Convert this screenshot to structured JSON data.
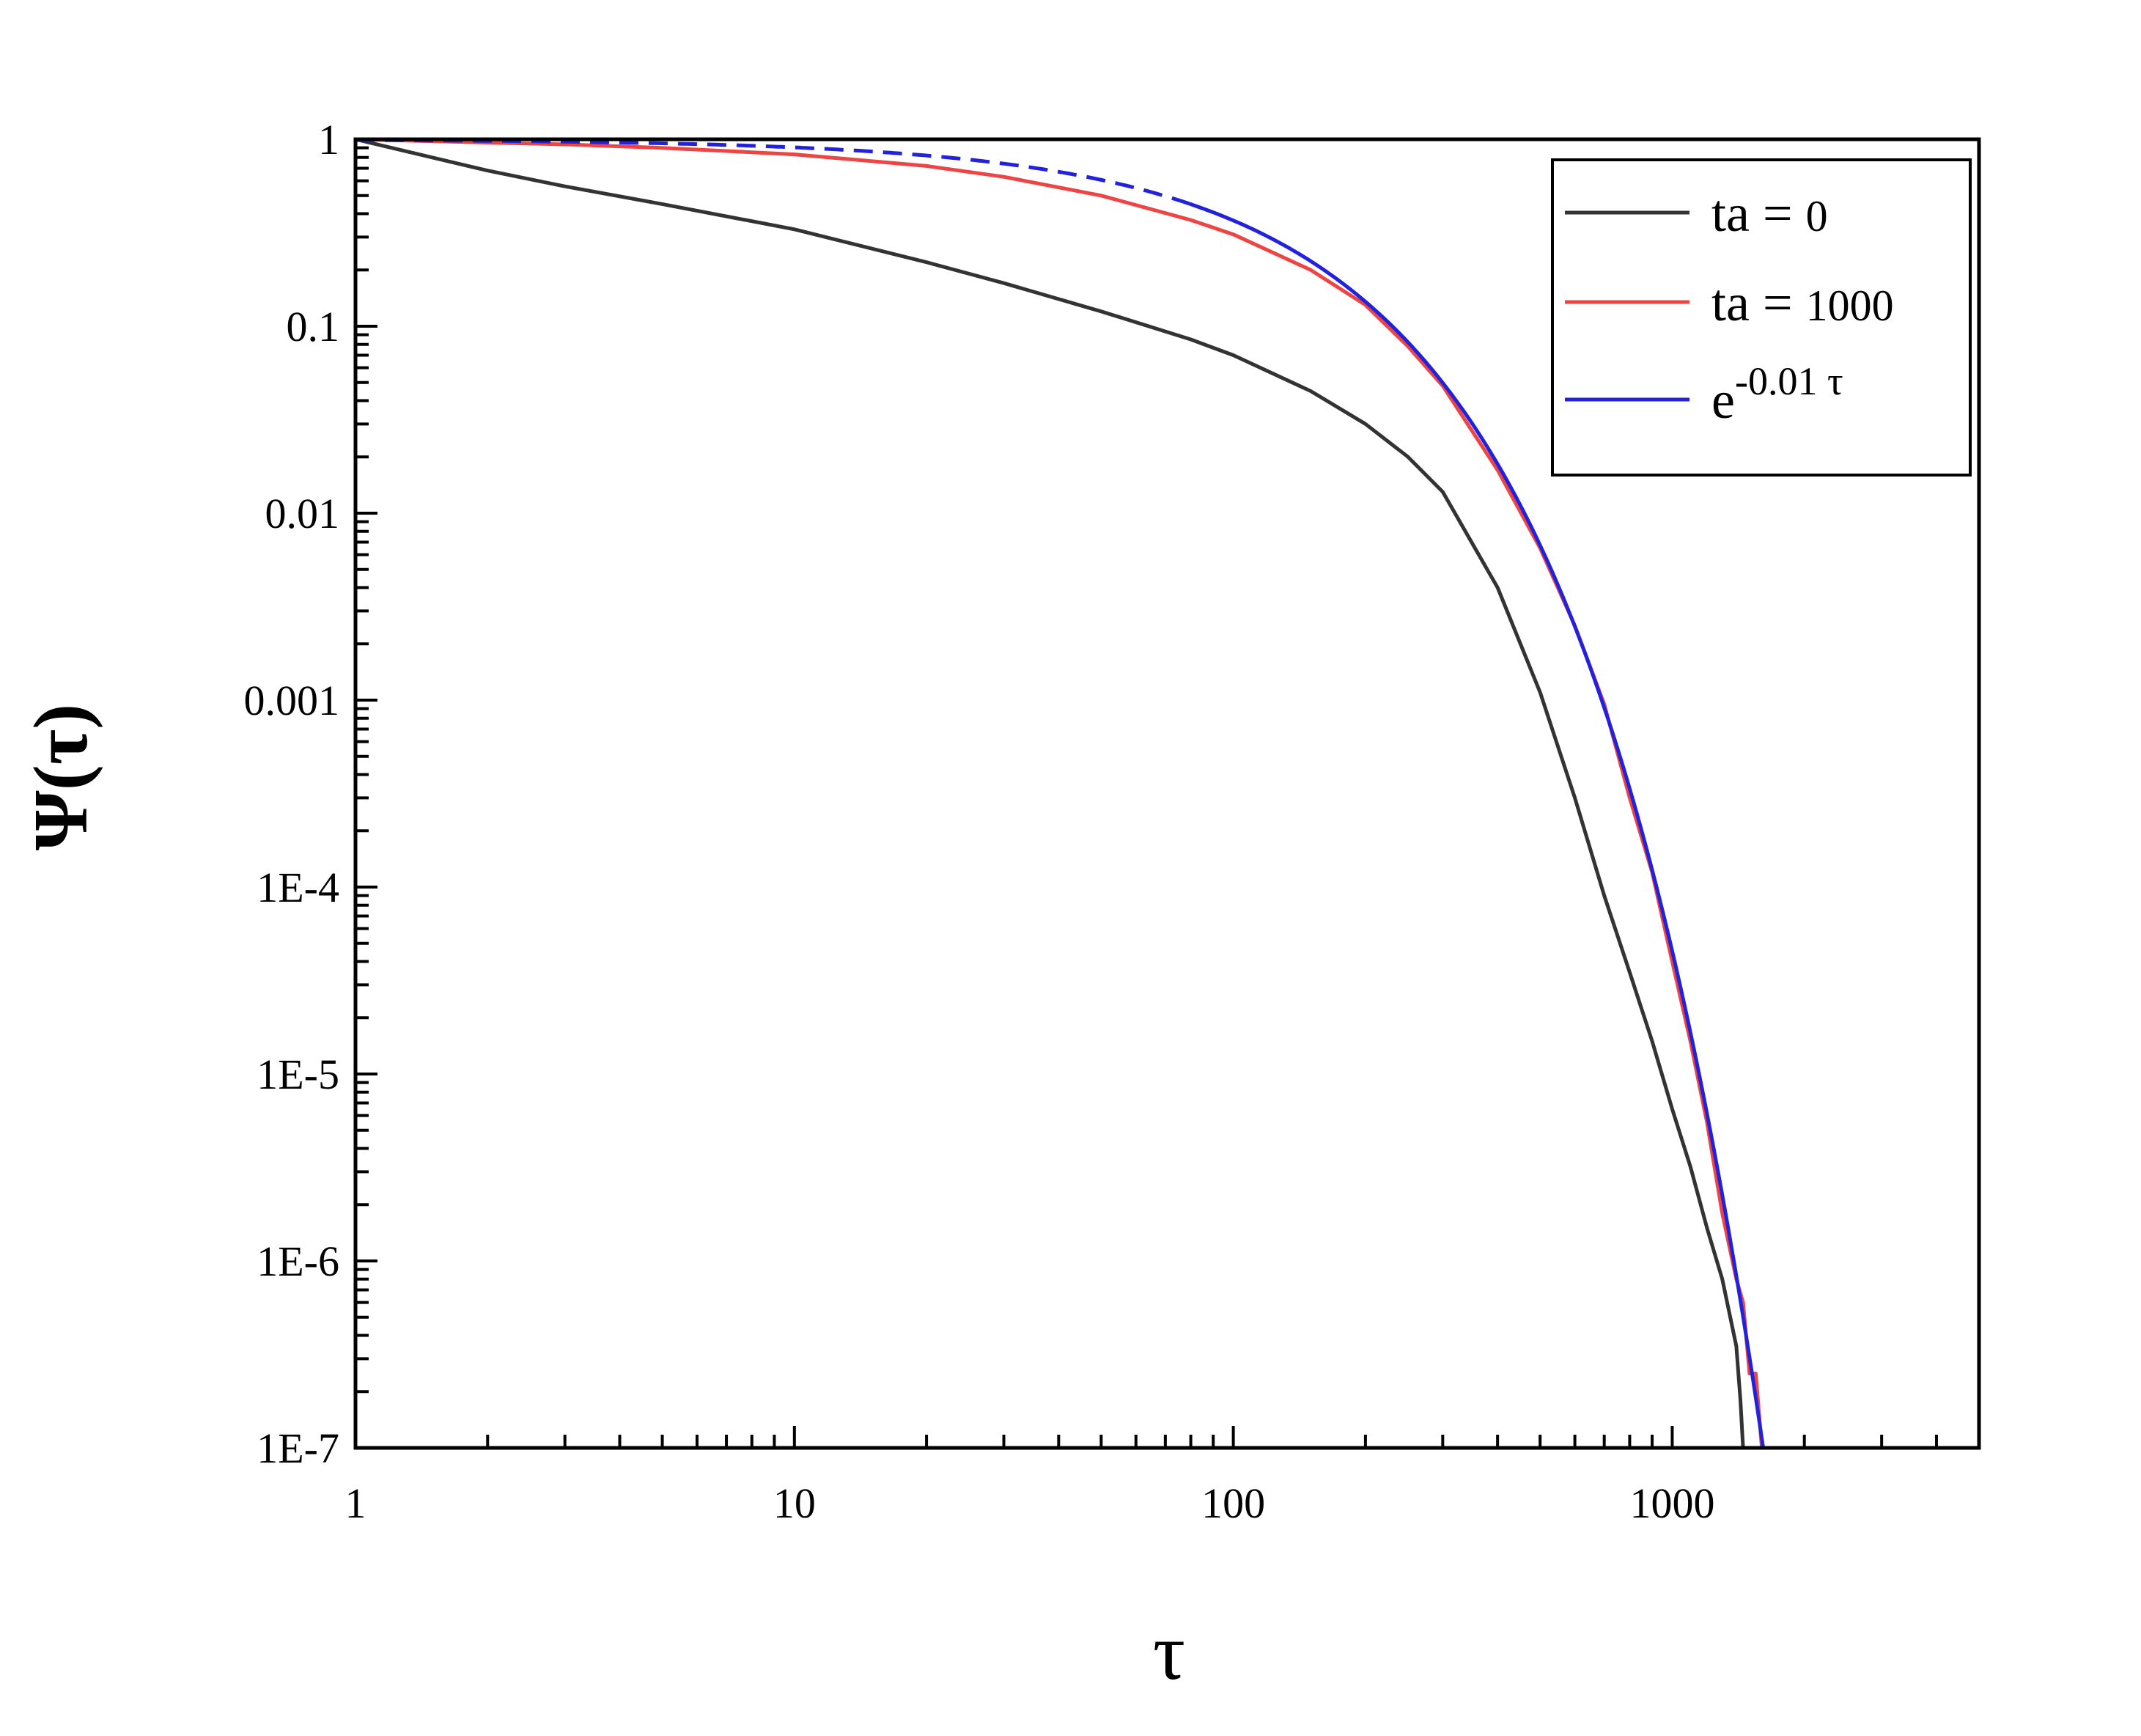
{
  "chart_data": {
    "type": "line",
    "xlabel": "τ",
    "ylabel": "Ψ(τ)",
    "x_scale": "log",
    "y_scale": "log",
    "xlim": [
      1,
      5000
    ],
    "ylim": [
      1e-07,
      1
    ],
    "x_ticks": [
      {
        "value": 1,
        "label": "1"
      },
      {
        "value": 10,
        "label": "10"
      },
      {
        "value": 100,
        "label": "100"
      },
      {
        "value": 1000,
        "label": "1000"
      }
    ],
    "y_ticks": [
      {
        "value": 1,
        "label": "1"
      },
      {
        "value": 0.1,
        "label": "0.1"
      },
      {
        "value": 0.01,
        "label": "0.01"
      },
      {
        "value": 0.001,
        "label": "0.001"
      },
      {
        "value": 0.0001,
        "label": "1E-4"
      },
      {
        "value": 1e-05,
        "label": "1E-5"
      },
      {
        "value": 1e-06,
        "label": "1E-6"
      },
      {
        "value": 1e-07,
        "label": "1E-7"
      }
    ],
    "grid": false,
    "legend_position": "top-right",
    "series": [
      {
        "name": "ta = 0",
        "name_parts": {
          "main": "ta =",
          "num": "0"
        },
        "color": "#333333",
        "x": [
          1,
          2,
          3,
          5,
          10,
          20,
          30,
          50,
          80,
          100,
          150,
          200,
          250,
          300,
          400,
          500,
          600,
          700,
          800,
          900,
          1000,
          1100,
          1200,
          1300,
          1400,
          1430,
          1450
        ],
        "y": [
          1,
          0.68,
          0.56,
          0.45,
          0.33,
          0.22,
          0.17,
          0.12,
          0.085,
          0.07,
          0.045,
          0.03,
          0.02,
          0.013,
          0.004,
          0.0011,
          0.0003,
          9e-05,
          3.5e-05,
          1.5e-05,
          6.5e-06,
          3.2e-06,
          1.5e-06,
          8e-07,
          3.5e-07,
          1.8e-07,
          1e-07
        ]
      },
      {
        "name": "ta = 1000",
        "name_parts": {
          "main": "ta =",
          "num": "1000"
        },
        "color": "#ee4444",
        "x": [
          1,
          2,
          3,
          5,
          10,
          20,
          30,
          50,
          80,
          100,
          150,
          200,
          250,
          300,
          400,
          500,
          600,
          700,
          800,
          900,
          1000,
          1100,
          1200,
          1300,
          1400,
          1450,
          1500,
          1550,
          1600
        ],
        "y": [
          1,
          0.96,
          0.94,
          0.9,
          0.83,
          0.72,
          0.63,
          0.5,
          0.37,
          0.31,
          0.2,
          0.13,
          0.078,
          0.048,
          0.017,
          0.0065,
          0.0025,
          0.00095,
          0.0003,
          0.00012,
          4e-05,
          1.5e-05,
          5.5e-06,
          1.8e-06,
          8e-07,
          6e-07,
          2.5e-07,
          2.5e-07,
          1e-07
        ]
      },
      {
        "name": "e^{-0.01 τ}",
        "name_parts": {
          "main": "e",
          "sup": "-0.01 τ"
        },
        "color": "#2222dd",
        "function": "exp(-0.01*x)",
        "dashed_until_x": 80,
        "x_range": [
          1,
          1612
        ]
      }
    ]
  }
}
